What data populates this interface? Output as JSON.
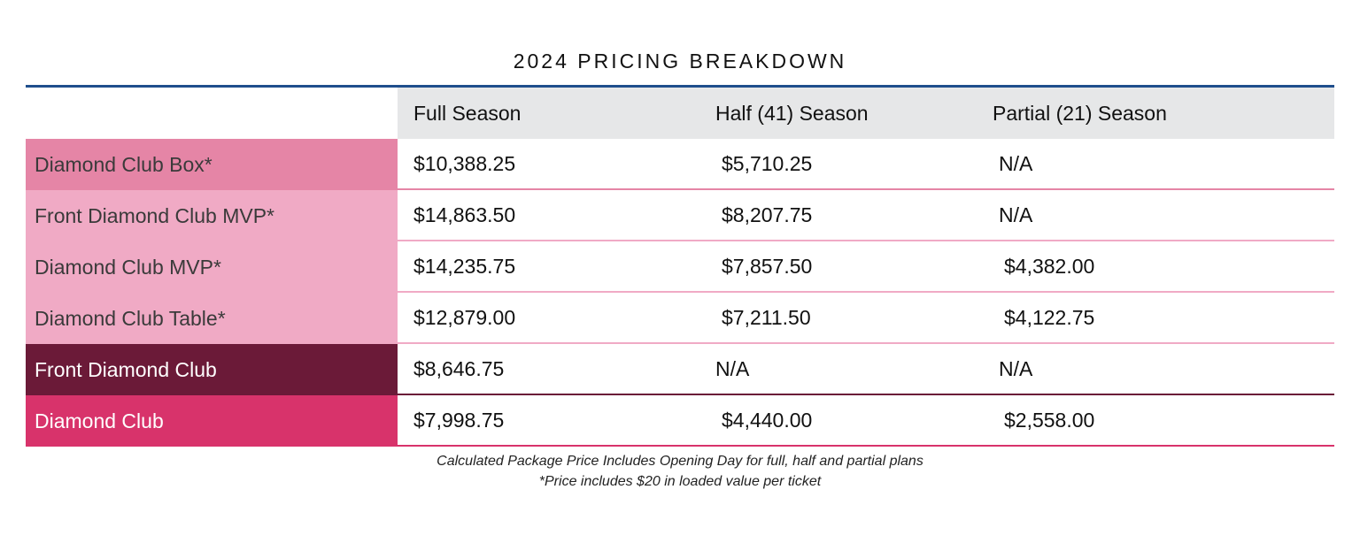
{
  "title": "2024 PRICING BREAKDOWN",
  "columns": [
    "Full Season",
    "Half (41) Season",
    "Partial (21) Season"
  ],
  "rows": [
    {
      "label": "Diamond Club Box*",
      "values": [
        "$10,388.25",
        "$5,710.25",
        "N/A"
      ],
      "color": "#e585a6",
      "text_color": "#3a3a3a",
      "line_color": "#e585a6"
    },
    {
      "label": "Front Diamond Club MVP*",
      "values": [
        "$14,863.50",
        "$8,207.75",
        "N/A"
      ],
      "color": "#f0aac5",
      "text_color": "#3a3a3a",
      "line_color": "#f0aac5"
    },
    {
      "label": "Diamond Club MVP*",
      "values": [
        "$14,235.75",
        "$7,857.50",
        "$4,382.00"
      ],
      "color": "#f0aac5",
      "text_color": "#3a3a3a",
      "line_color": "#f0aac5"
    },
    {
      "label": "Diamond Club Table*",
      "values": [
        "$12,879.00",
        "$7,211.50",
        "$4,122.75"
      ],
      "color": "#f0aac5",
      "text_color": "#3a3a3a",
      "line_color": "#f0aac5"
    },
    {
      "label": "Front Diamond Club",
      "values": [
        "$8,646.75",
        "N/A",
        "N/A"
      ],
      "color": "#6b1a38",
      "text_color": "#ffffff",
      "line_color": "#6b1a38"
    },
    {
      "label": "Diamond Club",
      "values": [
        "$7,998.75",
        "$4,440.00",
        "$2,558.00"
      ],
      "color": "#d8336b",
      "text_color": "#ffffff",
      "line_color": "#d8336b"
    }
  ],
  "footnotes": [
    "Calculated Package Price Includes Opening Day for full, half and partial plans",
    "*Price includes $20 in loaded value per ticket"
  ]
}
